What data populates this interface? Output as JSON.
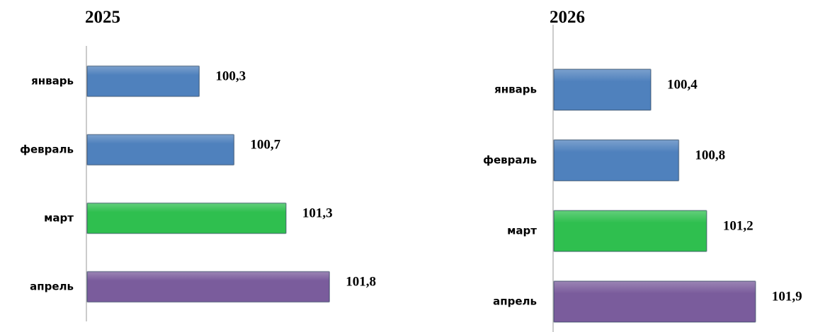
{
  "chart_data": [
    {
      "type": "bar",
      "title": "2025",
      "categories": [
        "январь",
        "февраль",
        "март",
        "апрель"
      ],
      "values": [
        100.3,
        100.7,
        101.3,
        101.8
      ],
      "value_labels": [
        "100,3",
        "100,7",
        "101,3",
        "101,8"
      ],
      "colors": [
        "#4f81bd",
        "#4f81bd",
        "#2fbf4f",
        "#7a5c9c"
      ],
      "xlim": [
        99,
        102.5
      ]
    },
    {
      "type": "bar",
      "title": "2026",
      "categories": [
        "январь",
        "февраль",
        "март",
        "апрель"
      ],
      "values": [
        100.4,
        100.8,
        101.2,
        101.9
      ],
      "value_labels": [
        "100,4",
        "100,8",
        "101,2",
        "101,9"
      ],
      "colors": [
        "#4f81bd",
        "#4f81bd",
        "#2fbf4f",
        "#7a5c9c"
      ],
      "xlim": [
        99,
        102.5
      ]
    }
  ]
}
